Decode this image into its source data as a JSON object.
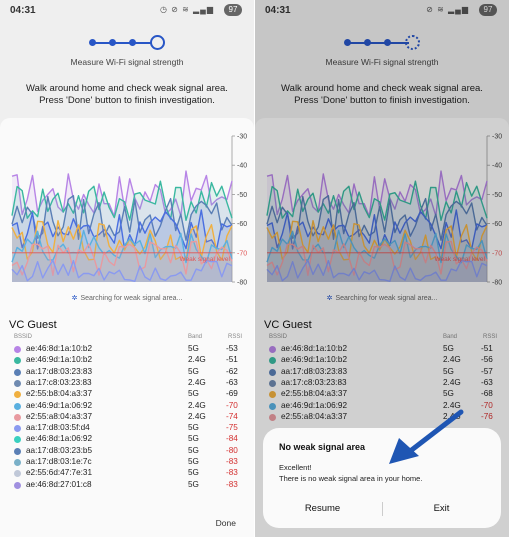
{
  "status": {
    "time": "04:31",
    "battery": "97"
  },
  "screen": {
    "step_title": "Measure Wi-Fi signal strength",
    "instructions": "Walk around home and check weak signal area. Press 'Done' button to finish investigation.",
    "searching": "Searching for weak signal area...",
    "done_label": "Done"
  },
  "chart_data": {
    "type": "area",
    "y_ticks": [
      -30,
      -40,
      -50,
      -60,
      -70,
      -80
    ],
    "ylim": [
      -80,
      -30
    ],
    "threshold": {
      "value": -70,
      "label": "Weak signal level",
      "color": "#e05555"
    },
    "series_colors": [
      "#b784e6",
      "#3ab8a0",
      "#5a7fb5",
      "#4a6fe0",
      "#f0b040",
      "#5ab0e0",
      "#e89aa0",
      "#8a9af0"
    ]
  },
  "network": {
    "ssid": "VC Guest",
    "headers": {
      "bssid": "BSSID",
      "band": "Band",
      "rssi": "RSSI"
    },
    "left_rows": [
      {
        "bssid": "ae:46:8d:1a:10:b2",
        "band": "5G",
        "rssi": "-53",
        "color": "#b784e6",
        "red": false
      },
      {
        "bssid": "ae:46:9d:1a:10:b2",
        "band": "2.4G",
        "rssi": "-51",
        "color": "#3ab8a0",
        "red": false
      },
      {
        "bssid": "aa:17:d8:03:23:83",
        "band": "5G",
        "rssi": "-62",
        "color": "#5a7fb5",
        "red": false
      },
      {
        "bssid": "aa:17:c8:03:23:83",
        "band": "2.4G",
        "rssi": "-63",
        "color": "#6f8ab0",
        "red": false
      },
      {
        "bssid": "e2:55:b8:04:a3:37",
        "band": "5G",
        "rssi": "-69",
        "color": "#f0b040",
        "red": false
      },
      {
        "bssid": "ae:46:9d:1a:06:92",
        "band": "2.4G",
        "rssi": "-70",
        "color": "#5ab0e0",
        "red": true
      },
      {
        "bssid": "e2:55:a8:04:a3:37",
        "band": "2.4G",
        "rssi": "-74",
        "color": "#e89aa0",
        "red": true
      },
      {
        "bssid": "aa:17:d8:03:5f:d4",
        "band": "5G",
        "rssi": "-75",
        "color": "#8a9af0",
        "red": true
      },
      {
        "bssid": "ae:46:8d:1a:06:92",
        "band": "5G",
        "rssi": "-84",
        "color": "#3ad0c0",
        "red": true
      },
      {
        "bssid": "aa:17:d8:03:23:b5",
        "band": "5G",
        "rssi": "-80",
        "color": "#5a7fb5",
        "red": true
      },
      {
        "bssid": "aa:17:d8:03:1e:7c",
        "band": "5G",
        "rssi": "-83",
        "color": "#7ab0c8",
        "red": true
      },
      {
        "bssid": "e2:55:6d:47:7e:31",
        "band": "5G",
        "rssi": "-83",
        "color": "#c0c8d8",
        "red": true
      },
      {
        "bssid": "ae:46:8d:27:01:c8",
        "band": "5G",
        "rssi": "-83",
        "color": "#a090e0",
        "red": true
      }
    ],
    "right_rows": [
      {
        "bssid": "ae:46:8d:1a:10:b2",
        "band": "5G",
        "rssi": "-51",
        "color": "#b784e6",
        "red": false
      },
      {
        "bssid": "ae:46:9d:1a:10:b2",
        "band": "2.4G",
        "rssi": "-56",
        "color": "#3ab8a0",
        "red": false
      },
      {
        "bssid": "aa:17:d8:03:23:83",
        "band": "5G",
        "rssi": "-57",
        "color": "#5a7fb5",
        "red": false
      },
      {
        "bssid": "aa:17:c8:03:23:83",
        "band": "2.4G",
        "rssi": "-63",
        "color": "#6f8ab0",
        "red": false
      },
      {
        "bssid": "e2:55:b8:04:a3:37",
        "band": "5G",
        "rssi": "-68",
        "color": "#f0b040",
        "red": false
      },
      {
        "bssid": "ae:46:9d:1a:06:92",
        "band": "2.4G",
        "rssi": "-70",
        "color": "#5ab0e0",
        "red": true
      },
      {
        "bssid": "e2:55:a8:04:a3:37",
        "band": "2.4G",
        "rssi": "-76",
        "color": "#e89aa0",
        "red": true
      }
    ]
  },
  "dialog": {
    "title": "No weak signal area",
    "message_line1": "Excellent!",
    "message_line2": "There is no weak signal area in your home.",
    "resume_label": "Resume",
    "exit_label": "Exit"
  }
}
